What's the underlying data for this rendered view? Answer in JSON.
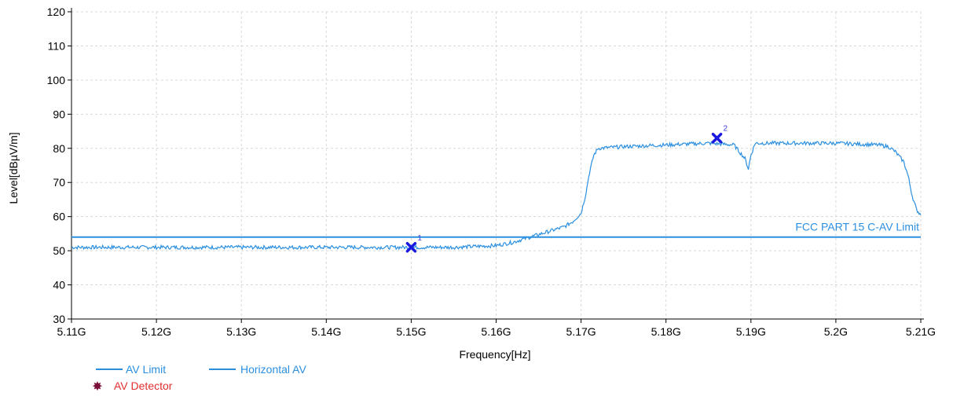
{
  "chart_data": {
    "type": "line",
    "xlabel": "Frequency[Hz]",
    "ylabel": "Level[dBµV/m]",
    "xlim": [
      5.11,
      5.21
    ],
    "ylim": [
      30,
      120
    ],
    "x_ticks": [
      5.11,
      5.12,
      5.13,
      5.14,
      5.15,
      5.16,
      5.17,
      5.18,
      5.19,
      5.2,
      5.21
    ],
    "x_tick_labels": [
      "5.11G",
      "5.12G",
      "5.13G",
      "5.14G",
      "5.15G",
      "5.16G",
      "5.17G",
      "5.18G",
      "5.19G",
      "5.2G",
      "5.21G"
    ],
    "y_ticks": [
      30,
      40,
      50,
      60,
      70,
      80,
      90,
      100,
      110,
      120
    ],
    "grid": true,
    "legend_position": "bottom-left",
    "series": [
      {
        "name": "AV Limit",
        "color": "#2b8fe0",
        "x": [
          5.11,
          5.21
        ],
        "y": [
          54,
          54
        ]
      },
      {
        "name": "Horizontal AV",
        "color": "#2b8fe0",
        "x": [
          5.11,
          5.12,
          5.13,
          5.14,
          5.15,
          5.155,
          5.16,
          5.162,
          5.164,
          5.166,
          5.168,
          5.169,
          5.17,
          5.1705,
          5.171,
          5.1715,
          5.172,
          5.175,
          5.18,
          5.185,
          5.188,
          5.1893,
          5.1897,
          5.19,
          5.1905,
          5.191,
          5.195,
          5.2,
          5.205,
          5.2062,
          5.207,
          5.208,
          5.2085,
          5.209,
          5.2095,
          5.21
        ],
        "y": [
          51,
          51,
          51,
          51,
          51,
          51,
          51.5,
          52.5,
          54,
          55.5,
          57,
          58.5,
          61,
          66,
          73,
          78,
          80,
          80.5,
          81,
          81.5,
          81,
          77,
          74,
          78,
          81.5,
          81.5,
          81.5,
          81.5,
          81,
          80.5,
          79,
          76,
          72,
          66,
          62,
          60.5
        ]
      }
    ],
    "detector_markers": {
      "name": "AV Detector",
      "color": "#7a0f3a",
      "points": [
        {
          "label": "1",
          "x": 5.15,
          "y": 51
        },
        {
          "label": "2",
          "x": 5.186,
          "y": 83
        }
      ]
    },
    "annotations": [
      {
        "text": "FCC PART 15 C-AV Limit",
        "x": 5.21,
        "y": 54
      }
    ]
  }
}
